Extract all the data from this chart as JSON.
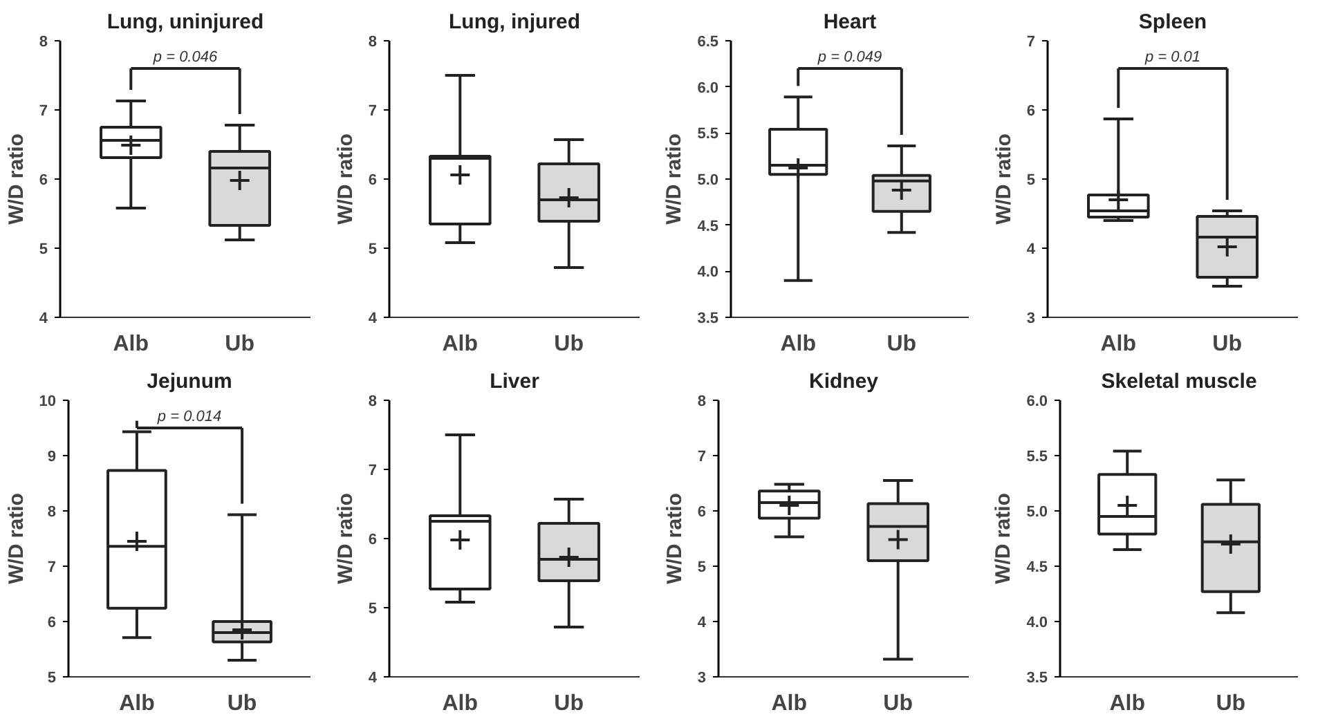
{
  "chart_data": [
    {
      "type": "box",
      "title": "Lung, uninjured",
      "ylabel": "W/D ratio",
      "categories": [
        "Alb",
        "Ub"
      ],
      "colors": [
        "#ffffff",
        "#d9d9d9"
      ],
      "marker": "cross",
      "ylim": [
        4,
        8
      ],
      "yticks": [
        4,
        5,
        6,
        7,
        8
      ],
      "annotations": [
        "p = 0.046"
      ],
      "boxes": [
        {
          "low": 5.58,
          "q1": 6.31,
          "median": 6.56,
          "q3": 6.75,
          "high": 7.13,
          "mean": 6.49
        },
        {
          "low": 5.12,
          "q1": 5.33,
          "median": 6.16,
          "q3": 6.4,
          "high": 6.78,
          "mean": 5.98
        }
      ]
    },
    {
      "type": "box",
      "title": "Lung, injured",
      "ylabel": "W/D ratio",
      "categories": [
        "Alb",
        "Ub"
      ],
      "colors": [
        "#ffffff",
        "#d9d9d9"
      ],
      "marker": "cross",
      "ylim": [
        4,
        8
      ],
      "yticks": [
        4,
        5,
        6,
        7,
        8
      ],
      "boxes": [
        {
          "low": 5.08,
          "q1": 5.35,
          "median": 6.3,
          "q3": 6.33,
          "high": 7.5,
          "mean": 6.06
        },
        {
          "low": 4.72,
          "q1": 5.39,
          "median": 5.7,
          "q3": 6.22,
          "high": 6.57,
          "mean": 5.73
        }
      ]
    },
    {
      "type": "box",
      "title": "Heart",
      "ylabel": "W/D ratio",
      "categories": [
        "Alb",
        "Ub"
      ],
      "colors": [
        "#ffffff",
        "#d9d9d9"
      ],
      "marker": "cross",
      "ylim": [
        3.5,
        6.5
      ],
      "yticks": [
        3.5,
        {
          "value": 4,
          "label": "4.0"
        },
        4.5,
        {
          "value": 5,
          "label": "5.0"
        },
        5.5,
        {
          "value": 6,
          "label": "6.0"
        },
        6.5
      ],
      "annotations": [
        "p = 0.049"
      ],
      "boxes": [
        {
          "low": 3.9,
          "q1": 5.05,
          "median": 5.15,
          "q3": 5.54,
          "high": 5.89,
          "mean": 5.12
        },
        {
          "low": 4.42,
          "q1": 4.65,
          "median": 4.98,
          "q3": 5.04,
          "high": 5.36,
          "mean": 4.88
        }
      ]
    },
    {
      "type": "box",
      "title": "Spleen",
      "ylabel": "W/D ratio",
      "categories": [
        "Alb",
        "Ub"
      ],
      "colors": [
        "#ffffff",
        "#d9d9d9"
      ],
      "marker": "cross",
      "ylim": [
        3,
        7
      ],
      "yticks": [
        3,
        4,
        5,
        6,
        7
      ],
      "annotations": [
        "p = 0.01"
      ],
      "boxes": [
        {
          "low": 4.4,
          "q1": 4.45,
          "median": 4.54,
          "q3": 4.77,
          "high": 5.87,
          "mean": 4.7
        },
        {
          "low": 3.45,
          "q1": 3.58,
          "median": 4.16,
          "q3": 4.46,
          "high": 4.54,
          "mean": 4.02
        }
      ]
    },
    {
      "type": "box",
      "title": "Jejunum",
      "ylabel": "W/D ratio",
      "categories": [
        "Alb",
        "Ub"
      ],
      "colors": [
        "#ffffff",
        "#d9d9d9"
      ],
      "marker": "cross",
      "ylim": [
        5,
        10
      ],
      "yticks": [
        5,
        6,
        7,
        8,
        9,
        10
      ],
      "annotations": [
        "p = 0.014"
      ],
      "boxes": [
        {
          "low": 5.71,
          "q1": 6.24,
          "median": 7.36,
          "q3": 8.73,
          "high": 9.43,
          "mean": 7.45
        },
        {
          "low": 5.3,
          "q1": 5.63,
          "median": 5.8,
          "q3": 6.0,
          "high": 7.93,
          "mean": 5.85
        }
      ]
    },
    {
      "type": "box",
      "title": "Liver",
      "ylabel": "W/D ratio",
      "categories": [
        "Alb",
        "Ub"
      ],
      "colors": [
        "#ffffff",
        "#d9d9d9"
      ],
      "marker": "cross",
      "ylim": [
        4,
        8
      ],
      "yticks": [
        4,
        5,
        6,
        7,
        8
      ],
      "boxes": [
        {
          "low": 5.08,
          "q1": 5.27,
          "median": 6.25,
          "q3": 6.33,
          "high": 7.5,
          "mean": 5.98
        },
        {
          "low": 4.72,
          "q1": 5.39,
          "median": 5.7,
          "q3": 6.22,
          "high": 6.57,
          "mean": 5.73
        }
      ]
    },
    {
      "type": "box",
      "title": "Kidney",
      "ylabel": "W/D ratio",
      "categories": [
        "Alb",
        "Ub"
      ],
      "colors": [
        "#ffffff",
        "#d9d9d9"
      ],
      "marker": "cross",
      "ylim": [
        3,
        8
      ],
      "yticks": [
        3,
        4,
        5,
        6,
        7,
        8
      ],
      "boxes": [
        {
          "low": 5.53,
          "q1": 5.87,
          "median": 6.15,
          "q3": 6.36,
          "high": 6.48,
          "mean": 6.1
        },
        {
          "low": 3.32,
          "q1": 5.1,
          "median": 5.72,
          "q3": 6.13,
          "high": 6.55,
          "mean": 5.48
        }
      ]
    },
    {
      "type": "box",
      "title": "Skeletal muscle",
      "ylabel": "W/D ratio",
      "categories": [
        "Alb",
        "Ub"
      ],
      "colors": [
        "#ffffff",
        "#d9d9d9"
      ],
      "marker": "cross",
      "ylim": [
        3.5,
        6.0
      ],
      "yticks": [
        3.5,
        {
          "value": 4,
          "label": "4.0"
        },
        4.5,
        {
          "value": 5,
          "label": "5.0"
        },
        5.5,
        {
          "value": 6,
          "label": "6.0"
        }
      ],
      "boxes": [
        {
          "low": 4.65,
          "q1": 4.79,
          "median": 4.95,
          "q3": 5.33,
          "high": 5.54,
          "mean": 5.05
        },
        {
          "low": 4.08,
          "q1": 4.27,
          "median": 4.72,
          "q3": 5.06,
          "high": 5.28,
          "mean": 4.7
        }
      ]
    }
  ]
}
